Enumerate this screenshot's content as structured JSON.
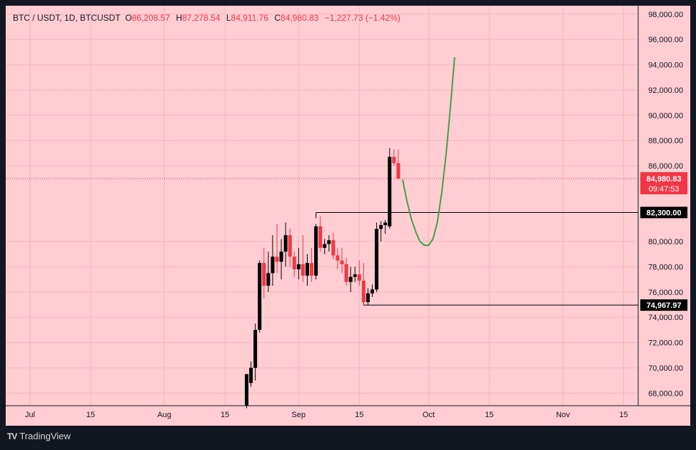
{
  "legend": {
    "symbol": "BTC / USDT, 1D, BTCUSDT",
    "open_label": "O",
    "open": "86,208.57",
    "high_label": "H",
    "high": "87,278.54",
    "low_label": "L",
    "low": "84,911.76",
    "close_label": "C",
    "close": "84,980.83",
    "change": "−1,227.73 (−1.42%)"
  },
  "footer": {
    "logo": "TV",
    "brand": "TradingView"
  },
  "colors": {
    "background": "#ffcdd2",
    "frame": "#131722",
    "up_candle": "#000000",
    "down_candle": "#f23645",
    "projection": "#43a047"
  },
  "chart_data": {
    "type": "candlestick",
    "title": "BTC / USDT, 1D, BTCUSDT",
    "ylim": [
      67000,
      98500
    ],
    "y_ticks": [
      "98,000.00",
      "96,000.00",
      "94,000.00",
      "92,000.00",
      "90,000.00",
      "88,000.00",
      "86,000.00",
      "80,000.00",
      "78,000.00",
      "76,000.00",
      "74,000.00",
      "72,000.00",
      "70,000.00",
      "68,000.00"
    ],
    "y_tick_values": [
      98000,
      96000,
      94000,
      92000,
      90000,
      88000,
      86000,
      80000,
      78000,
      76000,
      74000,
      72000,
      70000,
      68000
    ],
    "x_ticks": [
      {
        "label": "Jul",
        "day": 0
      },
      {
        "label": "15",
        "day": 14
      },
      {
        "label": "Aug",
        "day": 31
      },
      {
        "label": "15",
        "day": 45
      },
      {
        "label": "Sep",
        "day": 62
      },
      {
        "label": "15",
        "day": 76
      },
      {
        "label": "Oct",
        "day": 92
      },
      {
        "label": "15",
        "day": 106
      },
      {
        "label": "Nov",
        "day": 123
      },
      {
        "label": "15",
        "day": 137
      }
    ],
    "grid": true,
    "candles": [
      {
        "day": 50,
        "o": 67000,
        "h": 69500,
        "l": 66800,
        "c": 69500
      },
      {
        "day": 51,
        "o": 68800,
        "h": 70500,
        "l": 68500,
        "c": 70000
      },
      {
        "day": 52,
        "o": 70000,
        "h": 73500,
        "l": 69000,
        "c": 73000
      },
      {
        "day": 53,
        "o": 73000,
        "h": 78500,
        "l": 72800,
        "c": 78300
      },
      {
        "day": 54,
        "o": 78300,
        "h": 79500,
        "l": 75500,
        "c": 76500
      },
      {
        "day": 55,
        "o": 76500,
        "h": 79200,
        "l": 76000,
        "c": 77500
      },
      {
        "day": 56,
        "o": 77500,
        "h": 80500,
        "l": 76500,
        "c": 78800
      },
      {
        "day": 57,
        "o": 78800,
        "h": 81400,
        "l": 77500,
        "c": 78400
      },
      {
        "day": 58,
        "o": 78400,
        "h": 80200,
        "l": 77000,
        "c": 79200
      },
      {
        "day": 59,
        "o": 79200,
        "h": 81500,
        "l": 78000,
        "c": 80500
      },
      {
        "day": 60,
        "o": 80500,
        "h": 81000,
        "l": 78000,
        "c": 78800
      },
      {
        "day": 61,
        "o": 78800,
        "h": 79200,
        "l": 77200,
        "c": 77800
      },
      {
        "day": 62,
        "o": 77800,
        "h": 79500,
        "l": 77000,
        "c": 78200
      },
      {
        "day": 63,
        "o": 78200,
        "h": 80500,
        "l": 76800,
        "c": 77300
      },
      {
        "day": 64,
        "o": 77300,
        "h": 79000,
        "l": 76500,
        "c": 78300
      },
      {
        "day": 65,
        "o": 78300,
        "h": 79500,
        "l": 76800,
        "c": 77300
      },
      {
        "day": 66,
        "o": 77300,
        "h": 81400,
        "l": 77000,
        "c": 81200
      },
      {
        "day": 67,
        "o": 81200,
        "h": 82000,
        "l": 79200,
        "c": 79500
      },
      {
        "day": 68,
        "o": 79500,
        "h": 80200,
        "l": 79000,
        "c": 79800
      },
      {
        "day": 69,
        "o": 79800,
        "h": 80500,
        "l": 79200,
        "c": 80100
      },
      {
        "day": 70,
        "o": 80100,
        "h": 80700,
        "l": 78600,
        "c": 78900
      },
      {
        "day": 71,
        "o": 78900,
        "h": 79500,
        "l": 77800,
        "c": 78500
      },
      {
        "day": 72,
        "o": 78500,
        "h": 79500,
        "l": 77500,
        "c": 78200
      },
      {
        "day": 73,
        "o": 78200,
        "h": 78700,
        "l": 76500,
        "c": 76800
      },
      {
        "day": 74,
        "o": 76800,
        "h": 78000,
        "l": 76000,
        "c": 77200
      },
      {
        "day": 75,
        "o": 77200,
        "h": 78000,
        "l": 76800,
        "c": 77400
      },
      {
        "day": 76,
        "o": 77400,
        "h": 78500,
        "l": 76500,
        "c": 76900
      },
      {
        "day": 77,
        "o": 76900,
        "h": 78300,
        "l": 74900,
        "c": 75200
      },
      {
        "day": 78,
        "o": 75200,
        "h": 76300,
        "l": 74968,
        "c": 75900
      },
      {
        "day": 79,
        "o": 75900,
        "h": 76600,
        "l": 75600,
        "c": 76200
      },
      {
        "day": 80,
        "o": 76200,
        "h": 81500,
        "l": 76000,
        "c": 81000
      },
      {
        "day": 81,
        "o": 81000,
        "h": 81600,
        "l": 80000,
        "c": 81300
      },
      {
        "day": 82,
        "o": 81300,
        "h": 81700,
        "l": 80600,
        "c": 81500
      },
      {
        "day": 83,
        "o": 81200,
        "h": 87400,
        "l": 81000,
        "c": 86700
      },
      {
        "day": 84,
        "o": 86700,
        "h": 87300,
        "l": 86000,
        "c": 86208.57
      },
      {
        "day": 85,
        "o": 86208.57,
        "h": 87278.54,
        "l": 84911.76,
        "c": 84980.83
      }
    ],
    "price_line": {
      "value": 84980.83,
      "label": "84,980.83",
      "countdown": "09:47:53"
    },
    "levels": [
      {
        "value": 82300,
        "label": "82,300.00",
        "from_day": 66
      },
      {
        "value": 74967.97,
        "label": "74,967.97",
        "from_day": 77
      }
    ],
    "projection": [
      {
        "day": 86,
        "y": 84900
      },
      {
        "day": 87,
        "y": 83200
      },
      {
        "day": 88,
        "y": 81800
      },
      {
        "day": 89,
        "y": 80800
      },
      {
        "day": 90,
        "y": 80000
      },
      {
        "day": 91,
        "y": 79700
      },
      {
        "day": 92,
        "y": 79700
      },
      {
        "day": 93,
        "y": 80200
      },
      {
        "day": 94,
        "y": 81500
      },
      {
        "day": 95,
        "y": 83800
      },
      {
        "day": 96,
        "y": 86800
      },
      {
        "day": 97,
        "y": 90500
      },
      {
        "day": 98,
        "y": 94600
      }
    ]
  }
}
